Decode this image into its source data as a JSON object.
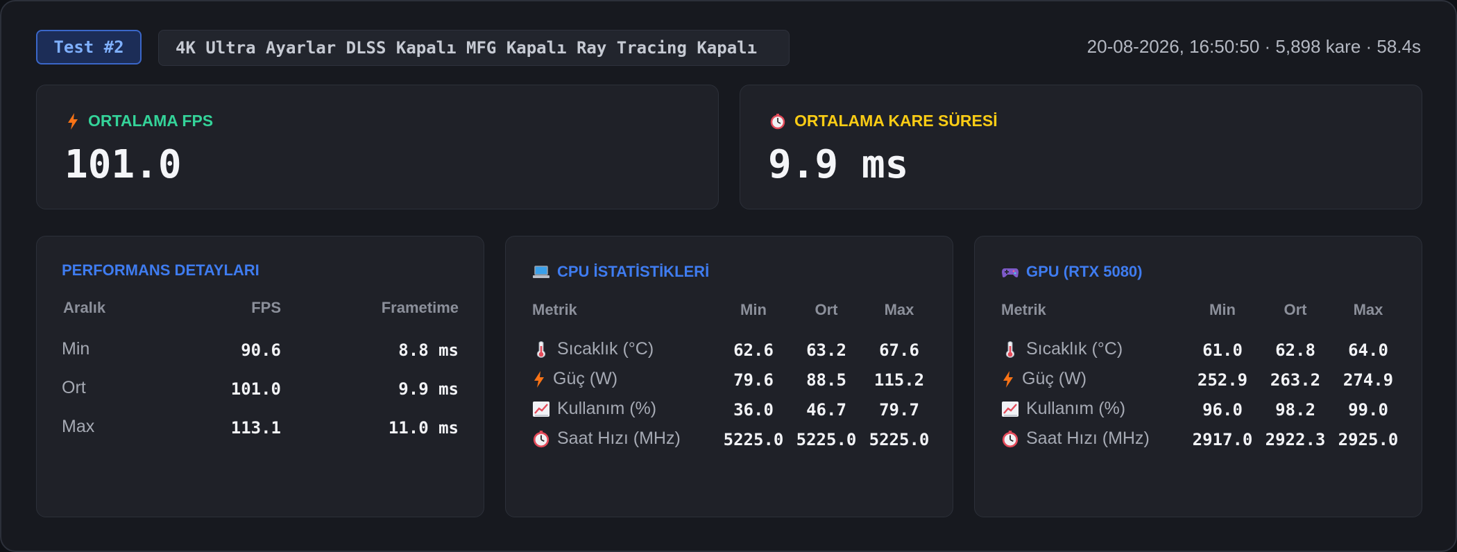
{
  "header": {
    "test_badge": "Test #2",
    "settings": "4K Ultra Ayarlar DLSS Kapalı MFG Kapalı Ray Tracing Kapalı",
    "meta": "20-08-2026, 16:50:50 · 5,898 kare · 58.4s"
  },
  "avg_fps": {
    "label": "ORTALAMA FPS",
    "value": "101.0",
    "icon": "lightning-icon",
    "color": "#34d399"
  },
  "avg_frametime": {
    "label": "ORTALAMA KARE SÜRESİ",
    "value": "9.9 ms",
    "icon": "stopwatch-icon",
    "color": "#facc15"
  },
  "performance": {
    "title": "PERFORMANS DETAYLARI",
    "headers": [
      "Aralık",
      "FPS",
      "Frametime"
    ],
    "rows": [
      {
        "range": "Min",
        "fps": "90.6",
        "frametime": "8.8 ms"
      },
      {
        "range": "Ort",
        "fps": "101.0",
        "frametime": "9.9 ms"
      },
      {
        "range": "Max",
        "fps": "113.1",
        "frametime": "11.0 ms"
      }
    ]
  },
  "cpu": {
    "title": "CPU İSTATİSTİKLERİ",
    "icon": "laptop-icon",
    "headers": [
      "Metrik",
      "Min",
      "Ort",
      "Max"
    ],
    "rows": [
      {
        "metric": "Sıcaklık (°C)",
        "icon": "thermometer-icon",
        "min": "62.6",
        "avg": "63.2",
        "max": "67.6"
      },
      {
        "metric": "Güç (W)",
        "icon": "lightning-icon",
        "min": "79.6",
        "avg": "88.5",
        "max": "115.2"
      },
      {
        "metric": "Kullanım (%)",
        "icon": "chart-up-icon",
        "min": "36.0",
        "avg": "46.7",
        "max": "79.7"
      },
      {
        "metric": "Saat Hızı (MHz)",
        "icon": "stopwatch-icon",
        "min": "5225.0",
        "avg": "5225.0",
        "max": "5225.0"
      }
    ]
  },
  "gpu": {
    "title": "GPU (RTX 5080)",
    "icon": "gamepad-icon",
    "headers": [
      "Metrik",
      "Min",
      "Ort",
      "Max"
    ],
    "rows": [
      {
        "metric": "Sıcaklık (°C)",
        "icon": "thermometer-icon",
        "min": "61.0",
        "avg": "62.8",
        "max": "64.0"
      },
      {
        "metric": "Güç (W)",
        "icon": "lightning-icon",
        "min": "252.9",
        "avg": "263.2",
        "max": "274.9"
      },
      {
        "metric": "Kullanım (%)",
        "icon": "chart-up-icon",
        "min": "96.0",
        "avg": "98.2",
        "max": "99.0"
      },
      {
        "metric": "Saat Hızı (MHz)",
        "icon": "stopwatch-icon",
        "min": "2917.0",
        "avg": "2922.3",
        "max": "2925.0"
      }
    ]
  }
}
